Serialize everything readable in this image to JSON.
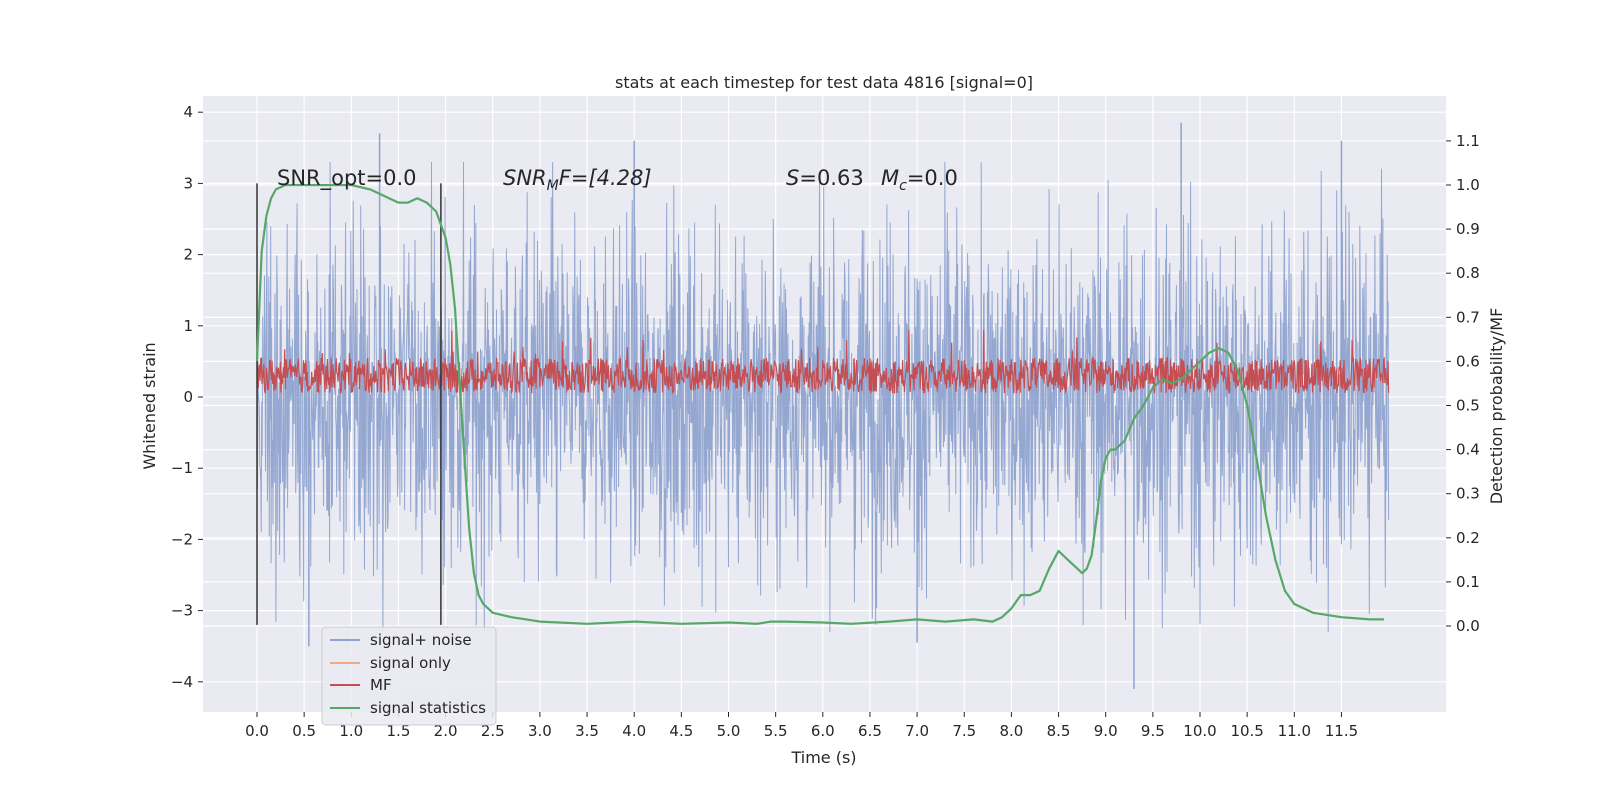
{
  "chart_data": {
    "type": "line",
    "title": "stats at each timestep for test data 4816 [signal=0]",
    "xlabel": "Time (s)",
    "ylabel": "Whitened strain",
    "y2label": "Detection probability/MF",
    "xlim": [
      -0.6,
      12.6
    ],
    "ylim": [
      -4.45,
      4.2
    ],
    "y2lim": [
      -0.2,
      1.2
    ],
    "grid": true,
    "legend_position": "lower-left",
    "x_ticks": [
      "0.0",
      "0.5",
      "1.0",
      "1.5",
      "2.0",
      "2.5",
      "3.0",
      "3.5",
      "4.0",
      "4.5",
      "5.0",
      "5.5",
      "6.0",
      "6.5",
      "7.0",
      "7.5",
      "8.0",
      "8.5",
      "9.0",
      "9.5",
      "10.0",
      "10.5",
      "11.0",
      "11.5"
    ],
    "y_ticks": [
      "4",
      "3",
      "2",
      "1",
      "0",
      "−1",
      "−2",
      "−3",
      "−4"
    ],
    "y2_ticks": [
      "1.1",
      "1.0",
      "0.9",
      "0.8",
      "0.7",
      "0.6",
      "0.5",
      "0.4",
      "0.3",
      "0.2",
      "0.1",
      "0.0"
    ],
    "annotations": {
      "snr_opt": "SNR_opt=0.0",
      "snr_mf_prefix": "SNR",
      "snr_mf_sub": "M",
      "snr_mf_suffix": "F=[4.28]",
      "s_label": "S",
      "s_value": "=0.63",
      "mc_label": "M",
      "mc_sub": "c",
      "mc_value": "=0.0"
    },
    "vertical_markers": [
      0.0,
      1.95
    ],
    "series": [
      {
        "name": "signal+ noise",
        "color": "#8fa3cf",
        "axis": "left",
        "x_range": [
          0.0,
          12.0
        ],
        "amplitude_typical": 1.6,
        "extremes": [
          [
            1.3,
            3.7
          ],
          [
            4.0,
            3.6
          ],
          [
            9.8,
            3.85
          ],
          [
            11.5,
            3.6
          ],
          [
            9.3,
            -4.1
          ],
          [
            0.55,
            -3.5
          ],
          [
            7.0,
            -3.45
          ]
        ]
      },
      {
        "name": "signal only",
        "color": "#eeaa88",
        "axis": "left",
        "values": []
      },
      {
        "name": "MF",
        "color": "#c44e52",
        "axis": "left",
        "x_range": [
          0.0,
          12.0
        ],
        "band": [
          0.05,
          0.55
        ],
        "peaks": [
          0.9,
          0.95,
          0.95,
          1.0,
          0.95,
          0.9
        ]
      },
      {
        "name": "signal statistics",
        "color": "#55a868",
        "axis": "right",
        "x": [
          0.0,
          0.05,
          0.1,
          0.15,
          0.2,
          0.3,
          0.5,
          0.8,
          1.0,
          1.2,
          1.4,
          1.5,
          1.6,
          1.7,
          1.8,
          1.9,
          2.0,
          2.05,
          2.1,
          2.15,
          2.2,
          2.25,
          2.3,
          2.35,
          2.4,
          2.5,
          2.7,
          3.0,
          3.5,
          4.0,
          4.5,
          5.0,
          5.3,
          5.45,
          5.6,
          6.0,
          6.3,
          6.7,
          7.0,
          7.3,
          7.6,
          7.8,
          7.9,
          8.0,
          8.1,
          8.2,
          8.3,
          8.4,
          8.5,
          8.6,
          8.7,
          8.75,
          8.8,
          8.85,
          8.9,
          8.95,
          9.0,
          9.05,
          9.1,
          9.15,
          9.2,
          9.3,
          9.4,
          9.5,
          9.6,
          9.7,
          9.8,
          9.9,
          10.0,
          10.1,
          10.2,
          10.3,
          10.4,
          10.5,
          10.6,
          10.7,
          10.8,
          10.9,
          11.0,
          11.2,
          11.5,
          11.8,
          11.95
        ],
        "y": [
          0.6,
          0.85,
          0.93,
          0.97,
          0.99,
          1.0,
          1.0,
          1.0,
          1.0,
          0.99,
          0.97,
          0.96,
          0.96,
          0.97,
          0.96,
          0.94,
          0.88,
          0.82,
          0.72,
          0.55,
          0.38,
          0.22,
          0.12,
          0.07,
          0.05,
          0.03,
          0.02,
          0.01,
          0.005,
          0.01,
          0.005,
          0.008,
          0.005,
          0.01,
          0.01,
          0.008,
          0.005,
          0.01,
          0.015,
          0.01,
          0.015,
          0.01,
          0.02,
          0.04,
          0.07,
          0.07,
          0.08,
          0.13,
          0.17,
          0.15,
          0.13,
          0.12,
          0.13,
          0.16,
          0.24,
          0.33,
          0.38,
          0.4,
          0.4,
          0.41,
          0.42,
          0.47,
          0.5,
          0.54,
          0.56,
          0.55,
          0.56,
          0.58,
          0.6,
          0.62,
          0.63,
          0.62,
          0.58,
          0.5,
          0.38,
          0.25,
          0.15,
          0.08,
          0.05,
          0.03,
          0.02,
          0.015,
          0.015
        ]
      }
    ]
  }
}
